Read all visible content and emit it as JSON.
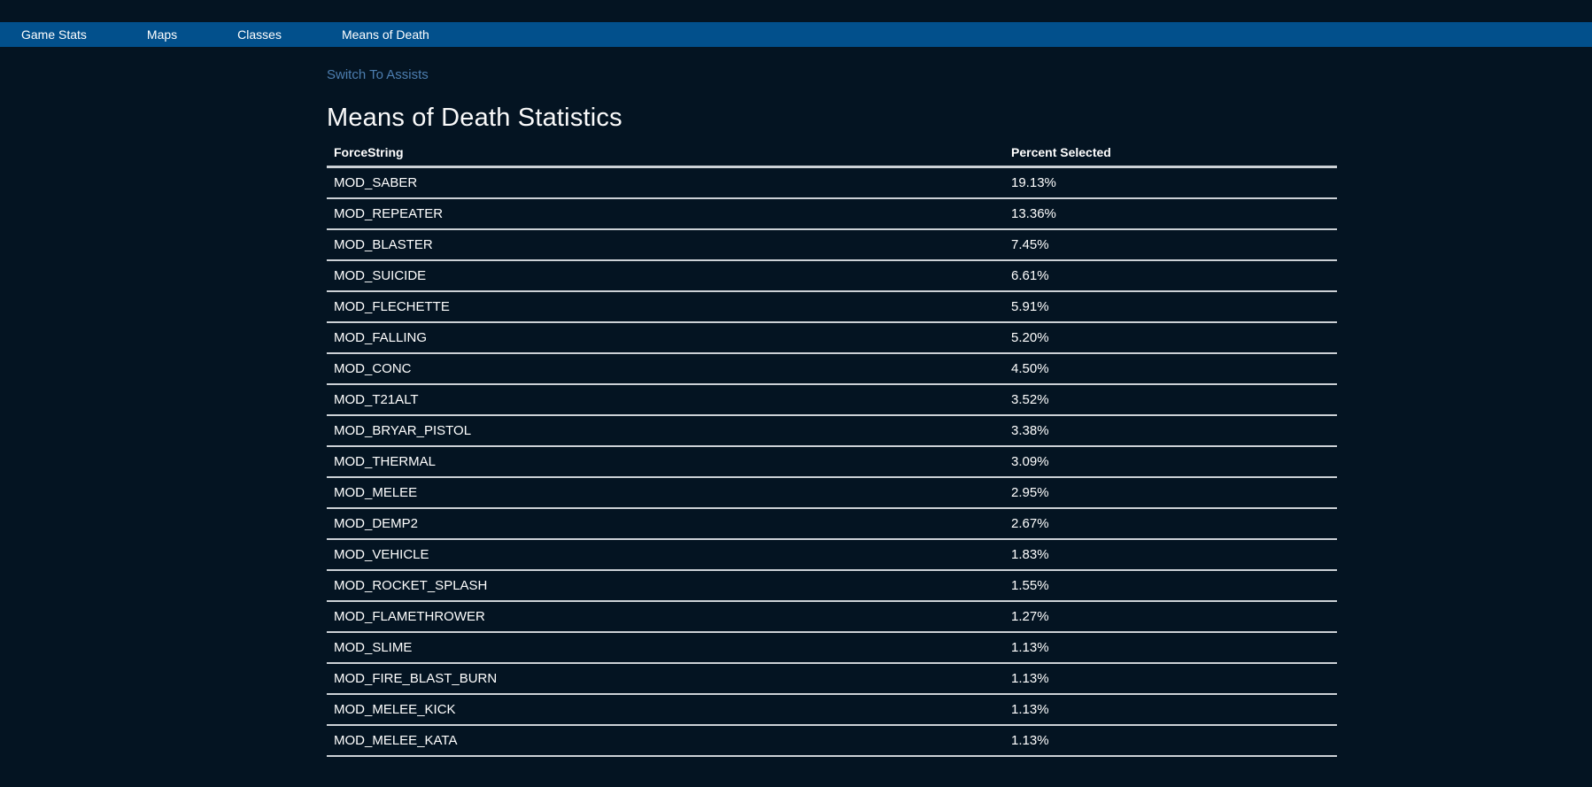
{
  "nav": {
    "items": [
      {
        "label": "Game Stats"
      },
      {
        "label": "Maps"
      },
      {
        "label": "Classes"
      },
      {
        "label": "Means of Death"
      }
    ]
  },
  "page": {
    "switch_link": "Switch To Assists",
    "title": "Means of Death Statistics"
  },
  "table": {
    "columns": [
      "ForceString",
      "Percent Selected"
    ],
    "rows": [
      {
        "force_string": "MOD_SABER",
        "percent_selected": "19.13%"
      },
      {
        "force_string": "MOD_REPEATER",
        "percent_selected": "13.36%"
      },
      {
        "force_string": "MOD_BLASTER",
        "percent_selected": "7.45%"
      },
      {
        "force_string": "MOD_SUICIDE",
        "percent_selected": "6.61%"
      },
      {
        "force_string": "MOD_FLECHETTE",
        "percent_selected": "5.91%"
      },
      {
        "force_string": "MOD_FALLING",
        "percent_selected": "5.20%"
      },
      {
        "force_string": "MOD_CONC",
        "percent_selected": "4.50%"
      },
      {
        "force_string": "MOD_T21ALT",
        "percent_selected": "3.52%"
      },
      {
        "force_string": "MOD_BRYAR_PISTOL",
        "percent_selected": "3.38%"
      },
      {
        "force_string": "MOD_THERMAL",
        "percent_selected": "3.09%"
      },
      {
        "force_string": "MOD_MELEE",
        "percent_selected": "2.95%"
      },
      {
        "force_string": "MOD_DEMP2",
        "percent_selected": "2.67%"
      },
      {
        "force_string": "MOD_VEHICLE",
        "percent_selected": "1.83%"
      },
      {
        "force_string": "MOD_ROCKET_SPLASH",
        "percent_selected": "1.55%"
      },
      {
        "force_string": "MOD_FLAMETHROWER",
        "percent_selected": "1.27%"
      },
      {
        "force_string": "MOD_SLIME",
        "percent_selected": "1.13%"
      },
      {
        "force_string": "MOD_FIRE_BLAST_BURN",
        "percent_selected": "1.13%"
      },
      {
        "force_string": "MOD_MELEE_KICK",
        "percent_selected": "1.13%"
      },
      {
        "force_string": "MOD_MELEE_KATA",
        "percent_selected": "1.13%"
      }
    ]
  },
  "colors": {
    "background": "#041422",
    "navbar": "#02508c",
    "link": "#4d7eb0",
    "text": "#ffffff",
    "title": "#fafafa",
    "border": "#ccd1d6"
  }
}
